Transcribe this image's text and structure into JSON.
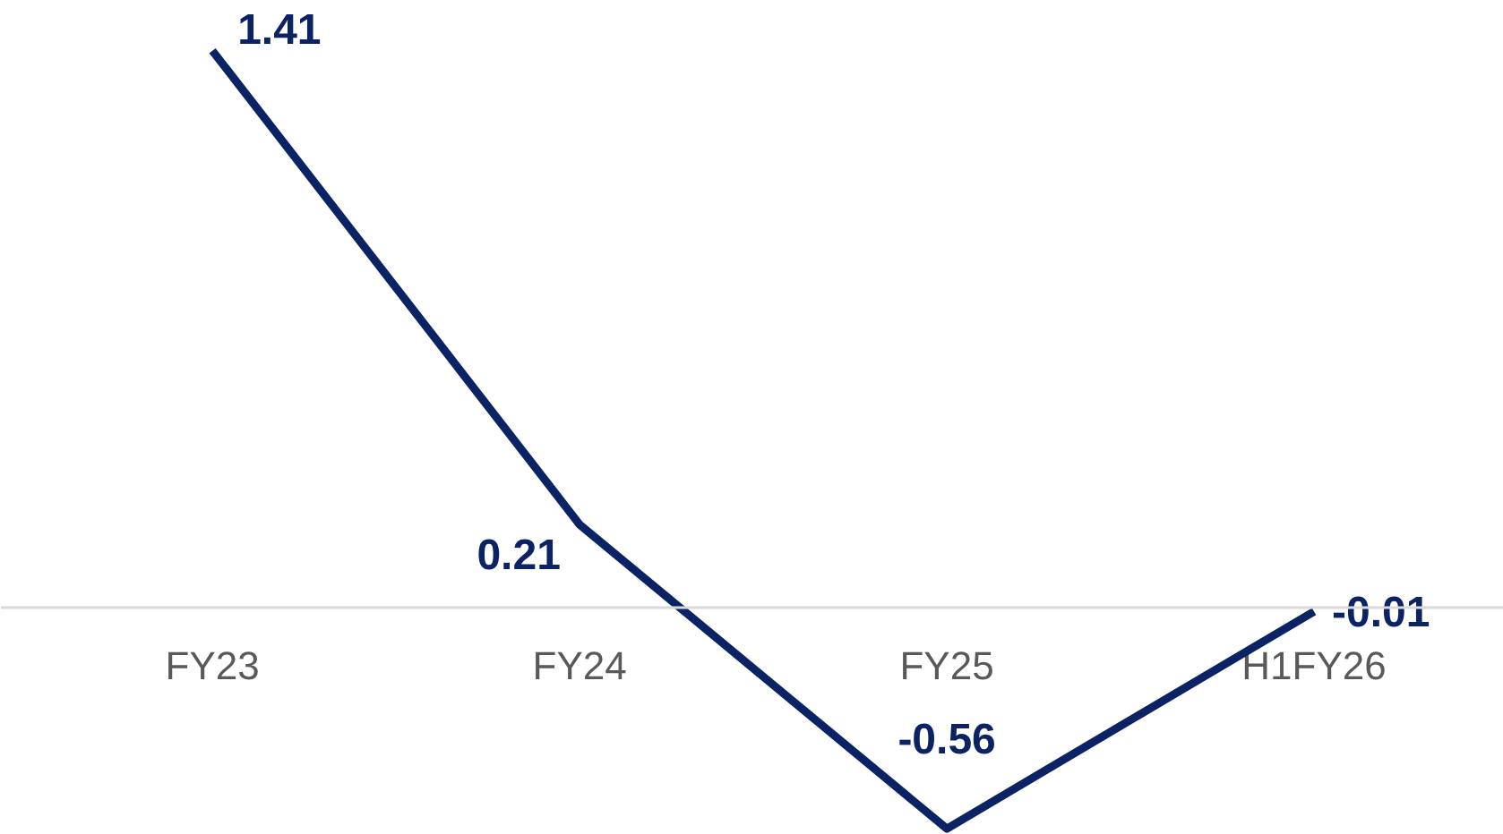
{
  "chart_data": {
    "type": "line",
    "categories": [
      "FY23",
      "FY24",
      "FY25",
      "H1FY26"
    ],
    "series": [
      {
        "color": "#0b2265",
        "values": [
          1.41,
          0.21,
          -0.56,
          -0.01
        ]
      }
    ],
    "data_labels": true,
    "grid": false,
    "marker": "none",
    "line_style": "solid"
  }
}
